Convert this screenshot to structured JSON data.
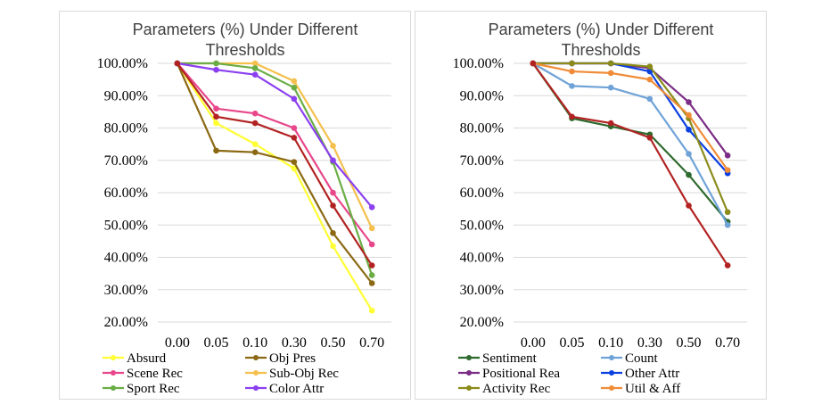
{
  "chart_data": [
    {
      "type": "line",
      "title": "Parameters (%) Under Different Thresholds",
      "categories": [
        "0.00",
        "0.05",
        "0.10",
        "0.30",
        "0.50",
        "0.70"
      ],
      "yticks": [
        "20.00%",
        "30.00%",
        "40.00%",
        "50.00%",
        "60.00%",
        "70.00%",
        "80.00%",
        "90.00%",
        "100.00%"
      ],
      "ylim": [
        20,
        100
      ],
      "grid": true,
      "legend_position": "bottom",
      "series": [
        {
          "name": "Absurd",
          "color": "#ffff33",
          "values": [
            100,
            81.5,
            75,
            67.5,
            43.5,
            23.5
          ]
        },
        {
          "name": "Obj Pres",
          "color": "#8b6914",
          "values": [
            100,
            73,
            72.5,
            69.5,
            47.5,
            32
          ]
        },
        {
          "name": "Scene Rec",
          "color": "#e8478b",
          "values": [
            100,
            86,
            84.5,
            80,
            60,
            44
          ]
        },
        {
          "name": "Sub-Obj Rec",
          "color": "#f5c04d",
          "values": [
            100,
            100,
            100,
            94.5,
            74.5,
            49
          ]
        },
        {
          "name": "Sport Rec",
          "color": "#6aad45",
          "values": [
            100,
            100,
            98.5,
            92.5,
            69.5,
            34.5
          ]
        },
        {
          "name": "Color Attr",
          "color": "#8b3ff0",
          "values": [
            100,
            98,
            96.5,
            89,
            70,
            55.5
          ]
        },
        {
          "name": "",
          "color": "#b22222",
          "values": [
            100,
            83.5,
            81.5,
            77,
            56,
            37.5
          ]
        }
      ]
    },
    {
      "type": "line",
      "title": "Parameters (%) Under Different Thresholds",
      "categories": [
        "0.00",
        "0.05",
        "0.10",
        "0.30",
        "0.50",
        "0.70"
      ],
      "yticks": [
        "20.00%",
        "30.00%",
        "40.00%",
        "50.00%",
        "60.00%",
        "70.00%",
        "80.00%",
        "90.00%",
        "100.00%"
      ],
      "ylim": [
        20,
        100
      ],
      "grid": true,
      "legend_position": "bottom",
      "series": [
        {
          "name": "Sentiment",
          "color": "#2e6b2e",
          "values": [
            100,
            83,
            80.5,
            78,
            65.5,
            51
          ]
        },
        {
          "name": "Count",
          "color": "#6fa3d8",
          "values": [
            100,
            93,
            92.5,
            89,
            72,
            50
          ]
        },
        {
          "name": "Positional Rea",
          "color": "#7b2c85",
          "values": [
            100,
            100,
            100,
            98.5,
            88,
            71.5
          ]
        },
        {
          "name": "Other Attr",
          "color": "#0a3fe0",
          "values": [
            100,
            100,
            100,
            97.5,
            79.5,
            66
          ]
        },
        {
          "name": "Activity Rec",
          "color": "#8b8b1a",
          "values": [
            100,
            100,
            100,
            99,
            83,
            54
          ]
        },
        {
          "name": "Util & Aff",
          "color": "#f08c38",
          "values": [
            100,
            97.5,
            97,
            95,
            84,
            67
          ]
        },
        {
          "name": "",
          "color": "#b22222",
          "values": [
            100,
            83.5,
            81.5,
            77,
            56,
            37.5
          ]
        }
      ]
    }
  ]
}
